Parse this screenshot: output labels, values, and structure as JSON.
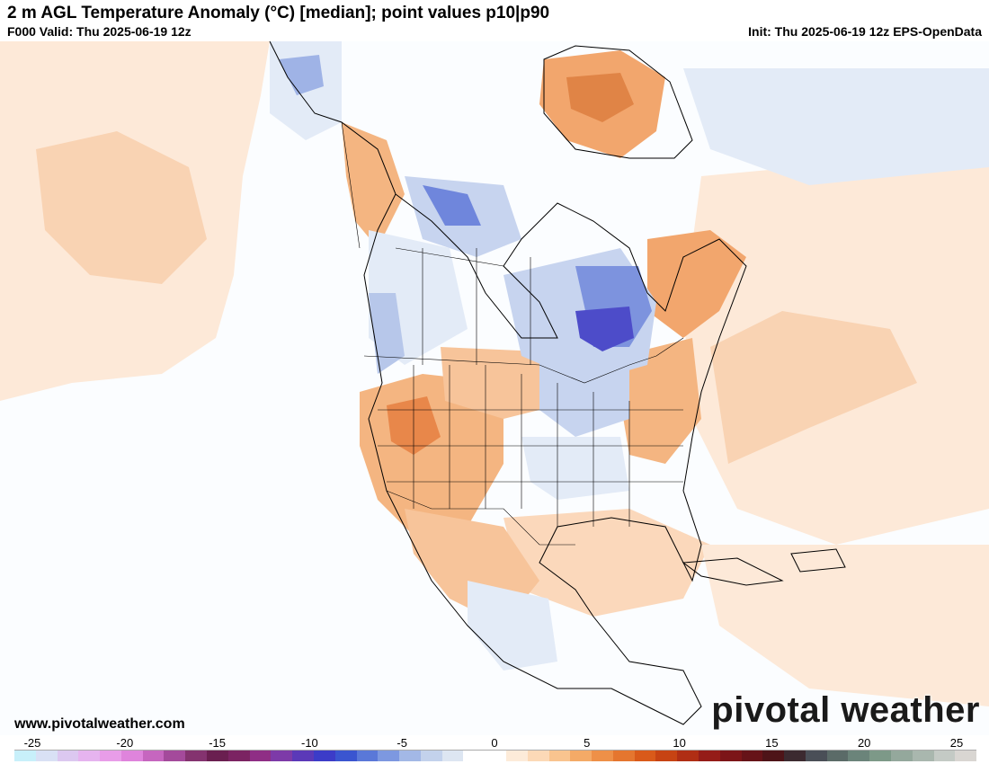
{
  "header": {
    "title": "2 m AGL Temperature Anomaly (°C) [median]; point values p10|p90",
    "valid": "F000 Valid: Thu 2025-06-19 12z",
    "init": "Init: Thu 2025-06-19 12z EPS-OpenData"
  },
  "footer": {
    "website": "www.pivotalweather.com",
    "brand": "pivotal weather"
  },
  "colorbar": {
    "tick_labels": [
      "-25",
      "-20",
      "-15",
      "-10",
      "-5",
      "0",
      "5",
      "10",
      "15",
      "20",
      "25"
    ],
    "colors": [
      "#c8f0fa",
      "#d9e1f5",
      "#dcc8f0",
      "#e6b4ef",
      "#e89de8",
      "#df84dc",
      "#c666bf",
      "#a44a9b",
      "#84336f",
      "#6a1f50",
      "#7b2362",
      "#8f2e85",
      "#7d3aa8",
      "#5b39b8",
      "#3c3cc8",
      "#3a55d0",
      "#5a78d8",
      "#7d98e0",
      "#a3b8e6",
      "#c3d2ec",
      "#dde6f2",
      "#ffffff",
      "#ffffff",
      "#fdebd9",
      "#fcd9b7",
      "#f9c48f",
      "#f4aa67",
      "#ee9048",
      "#e5762f",
      "#d95a1a",
      "#c74313",
      "#b02e14",
      "#951c18",
      "#7c1518",
      "#661318",
      "#4e1418",
      "#3c2a30",
      "#4a4f57",
      "#5b6b68",
      "#6b847a",
      "#7d9988",
      "#94a89c",
      "#a9b7ae",
      "#c4cac5",
      "#d9d6d2"
    ]
  },
  "map": {
    "subject": "North America 2 m temperature anomaly",
    "colors": {
      "ocean": "#fbfdff",
      "warm_light": "#fde9d8",
      "warm_mid": "#f7c49a",
      "warm_strong": "#e8874a",
      "warm_peak": "#c8601f",
      "cool_light": "#e3ebf7",
      "cool_mid": "#b7c7ea",
      "cool_strong": "#7289dc",
      "cool_peak": "#4d4cc9",
      "border": "#000000"
    }
  }
}
